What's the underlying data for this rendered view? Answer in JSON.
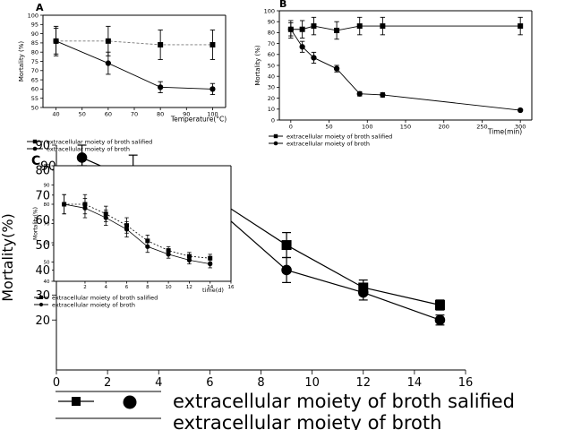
{
  "chart_data": [
    {
      "id": "A",
      "type": "line",
      "panel_label": "A",
      "xlabel": "Temperature(°C)",
      "ylabel": "Mortality (%)",
      "xlim": [
        35,
        105
      ],
      "ylim": [
        50,
        100
      ],
      "x_ticks": [
        40,
        50,
        60,
        70,
        80,
        90,
        100
      ],
      "y_ticks": [
        50,
        55,
        60,
        65,
        70,
        75,
        80,
        85,
        90,
        95,
        100
      ],
      "legend": {
        "placement": "bottom-left"
      },
      "series": [
        {
          "name": "extracellular moiety of broth salified",
          "marker": "square",
          "x": [
            40,
            60,
            80,
            100
          ],
          "y": [
            86,
            86,
            84,
            84
          ],
          "err": [
            8,
            8,
            8,
            8
          ]
        },
        {
          "name": "extracellular moiety of broth",
          "marker": "circle",
          "x": [
            40,
            60,
            80,
            100
          ],
          "y": [
            86,
            74,
            61,
            60
          ],
          "err": [
            7,
            6,
            3,
            3
          ]
        }
      ]
    },
    {
      "id": "B",
      "type": "line",
      "panel_label": "B",
      "xlabel": "Time(min)",
      "ylabel": "Mortality (%)",
      "xlim": [
        -15,
        315
      ],
      "ylim": [
        0,
        100
      ],
      "x_ticks": [
        0,
        50,
        100,
        150,
        200,
        250,
        300
      ],
      "y_ticks": [
        0,
        10,
        20,
        30,
        40,
        50,
        60,
        70,
        80,
        90,
        100
      ],
      "legend": {
        "placement": "bottom-left"
      },
      "series": [
        {
          "name": "extracellular moiety of broth salified",
          "marker": "square",
          "x": [
            0,
            15,
            30,
            60,
            90,
            120,
            300
          ],
          "y": [
            83,
            83,
            86,
            82,
            86,
            86,
            86
          ],
          "err": [
            8,
            8,
            8,
            8,
            8,
            8,
            8
          ]
        },
        {
          "name": "extracellular moiety of broth",
          "marker": "circle",
          "x": [
            0,
            15,
            30,
            60,
            90,
            120,
            300
          ],
          "y": [
            83,
            67,
            57,
            47,
            24,
            23,
            9
          ],
          "err": [
            6,
            5,
            5,
            3,
            2,
            2,
            1
          ]
        }
      ]
    },
    {
      "id": "C",
      "type": "line",
      "panel_label": "C",
      "xlabel": "",
      "ylabel": "Mortality(%)",
      "xlim": [
        0,
        16
      ],
      "ylim": [
        0,
        90
      ],
      "x_ticks": [
        0,
        2,
        4,
        6,
        8,
        10,
        12,
        14,
        16
      ],
      "y_ticks": [
        20,
        30,
        40,
        50,
        60,
        70,
        80,
        90
      ],
      "y_top_label": "90",
      "legend": {
        "placement": "bottom"
      },
      "series": [
        {
          "name": "extracellular moiety of broth salified",
          "marker": "square",
          "x": [
            1,
            3,
            6,
            9,
            12,
            15
          ],
          "y": [
            80,
            76,
            70,
            50,
            33,
            26
          ],
          "err": [
            5,
            4,
            6,
            5,
            3,
            2
          ]
        },
        {
          "name": "extracellular moiety of broth",
          "marker": "circle",
          "x": [
            1,
            3,
            6,
            9,
            12,
            15
          ],
          "y": [
            85,
            76,
            67,
            40,
            31,
            20
          ],
          "err": [
            5,
            10,
            6,
            5,
            3,
            2
          ]
        }
      ]
    },
    {
      "id": "C_inset",
      "type": "line",
      "xlabel": "time(d)",
      "ylabel": "Mortality(%)",
      "xlim": [
        -1,
        16
      ],
      "ylim": [
        40,
        100
      ],
      "x_ticks": [
        2,
        4,
        6,
        8,
        10,
        12,
        14,
        16
      ],
      "x_tick_labels": [
        "2",
        "4",
        "6",
        "8",
        "10",
        "12",
        "14",
        "16"
      ],
      "y_ticks": [
        40,
        50,
        60,
        70,
        80,
        90,
        100
      ],
      "legend": {
        "placement": "bottom-left"
      },
      "series": [
        {
          "name": "extracellular moiety of broth salified",
          "marker": "square",
          "x": [
            0,
            2,
            4,
            6,
            8,
            10,
            12,
            14
          ],
          "y": [
            80,
            80,
            75,
            69,
            61,
            56,
            53,
            52
          ],
          "err": [
            5,
            5,
            4,
            4,
            3,
            2,
            2,
            2
          ]
        },
        {
          "name": "extracellular moiety of broth",
          "marker": "circle",
          "x": [
            0,
            2,
            4,
            6,
            8,
            10,
            12,
            14
          ],
          "y": [
            80,
            78,
            73,
            67,
            58,
            54,
            51,
            49
          ],
          "err": [
            5,
            5,
            4,
            4,
            3,
            2,
            2,
            2
          ]
        }
      ]
    }
  ]
}
